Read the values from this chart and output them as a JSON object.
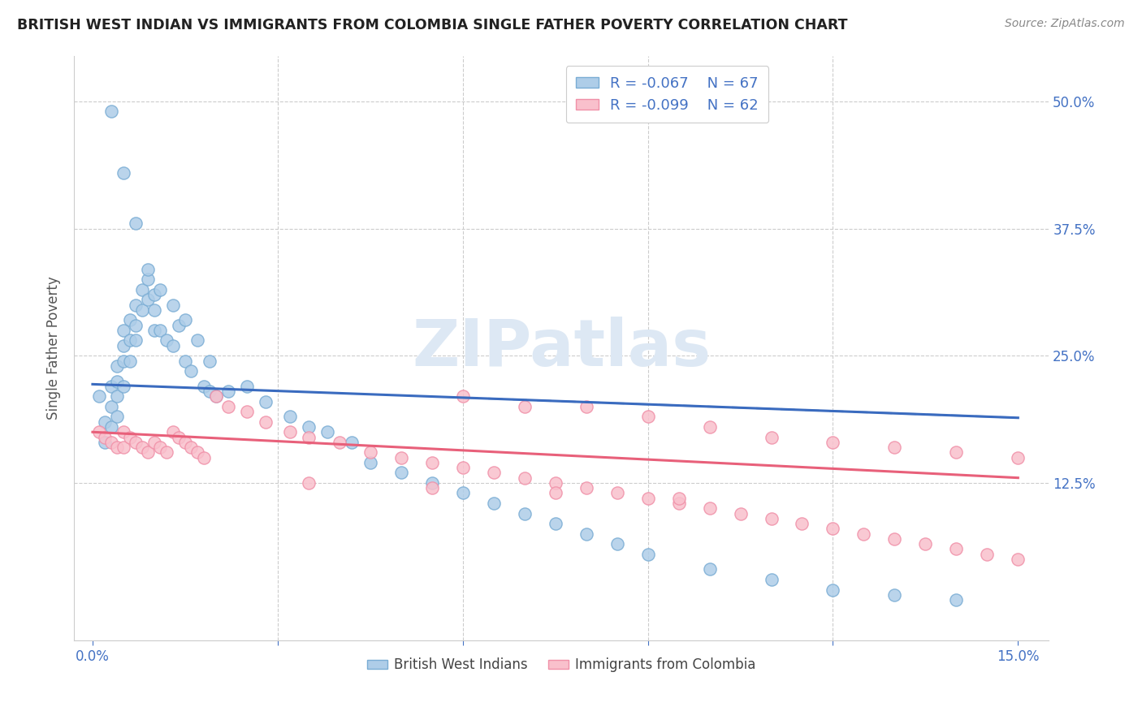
{
  "title": "BRITISH WEST INDIAN VS IMMIGRANTS FROM COLOMBIA SINGLE FATHER POVERTY CORRELATION CHART",
  "source": "Source: ZipAtlas.com",
  "ylabel": "Single Father Poverty",
  "ytick_labels": [
    "12.5%",
    "25.0%",
    "37.5%",
    "50.0%"
  ],
  "ytick_values": [
    0.125,
    0.25,
    0.375,
    0.5
  ],
  "xlim": [
    0.0,
    0.15
  ],
  "ylim": [
    -0.02,
    0.54
  ],
  "legend_r1": "R = -0.067",
  "legend_n1": "N = 67",
  "legend_r2": "R = -0.099",
  "legend_n2": "N = 62",
  "color_blue_face": "#aecde8",
  "color_blue_edge": "#7aadd4",
  "color_pink_face": "#f9c0cc",
  "color_pink_edge": "#f090a8",
  "trendline_blue": "#3a6bbf",
  "trendline_pink": "#e8607a",
  "trendline_dash_color": "#a0b8d8",
  "watermark_text": "ZIPatlas",
  "blue_intercept": 0.222,
  "blue_slope": -0.22,
  "pink_intercept": 0.175,
  "pink_slope": -0.3,
  "dash_intercept": 0.222,
  "dash_slope": -0.22,
  "blue_x": [
    0.001,
    0.002,
    0.002,
    0.003,
    0.003,
    0.003,
    0.004,
    0.004,
    0.004,
    0.004,
    0.005,
    0.005,
    0.005,
    0.005,
    0.006,
    0.006,
    0.006,
    0.007,
    0.007,
    0.007,
    0.008,
    0.008,
    0.009,
    0.009,
    0.01,
    0.01,
    0.01,
    0.011,
    0.012,
    0.013,
    0.014,
    0.015,
    0.016,
    0.018,
    0.019,
    0.02,
    0.022,
    0.025,
    0.028,
    0.032,
    0.035,
    0.038,
    0.042,
    0.045,
    0.05,
    0.055,
    0.06,
    0.065,
    0.07,
    0.075,
    0.08,
    0.085,
    0.09,
    0.1,
    0.11,
    0.12,
    0.13,
    0.14,
    0.003,
    0.005,
    0.007,
    0.009,
    0.011,
    0.013,
    0.015,
    0.017,
    0.019
  ],
  "blue_y": [
    0.21,
    0.185,
    0.165,
    0.22,
    0.2,
    0.18,
    0.24,
    0.225,
    0.21,
    0.19,
    0.275,
    0.26,
    0.245,
    0.22,
    0.285,
    0.265,
    0.245,
    0.3,
    0.28,
    0.265,
    0.315,
    0.295,
    0.325,
    0.305,
    0.31,
    0.295,
    0.275,
    0.275,
    0.265,
    0.26,
    0.28,
    0.245,
    0.235,
    0.22,
    0.215,
    0.21,
    0.215,
    0.22,
    0.205,
    0.19,
    0.18,
    0.175,
    0.165,
    0.145,
    0.135,
    0.125,
    0.115,
    0.105,
    0.095,
    0.085,
    0.075,
    0.065,
    0.055,
    0.04,
    0.03,
    0.02,
    0.015,
    0.01,
    0.49,
    0.43,
    0.38,
    0.335,
    0.315,
    0.3,
    0.285,
    0.265,
    0.245
  ],
  "pink_x": [
    0.001,
    0.002,
    0.003,
    0.004,
    0.005,
    0.005,
    0.006,
    0.007,
    0.008,
    0.009,
    0.01,
    0.011,
    0.012,
    0.013,
    0.014,
    0.015,
    0.016,
    0.017,
    0.018,
    0.02,
    0.022,
    0.025,
    0.028,
    0.032,
    0.035,
    0.04,
    0.045,
    0.05,
    0.055,
    0.06,
    0.065,
    0.07,
    0.075,
    0.08,
    0.085,
    0.09,
    0.095,
    0.1,
    0.105,
    0.11,
    0.115,
    0.12,
    0.125,
    0.13,
    0.135,
    0.14,
    0.145,
    0.15,
    0.06,
    0.07,
    0.08,
    0.09,
    0.1,
    0.11,
    0.12,
    0.13,
    0.14,
    0.15,
    0.035,
    0.055,
    0.075,
    0.095
  ],
  "pink_y": [
    0.175,
    0.17,
    0.165,
    0.16,
    0.175,
    0.16,
    0.17,
    0.165,
    0.16,
    0.155,
    0.165,
    0.16,
    0.155,
    0.175,
    0.17,
    0.165,
    0.16,
    0.155,
    0.15,
    0.21,
    0.2,
    0.195,
    0.185,
    0.175,
    0.17,
    0.165,
    0.155,
    0.15,
    0.145,
    0.14,
    0.135,
    0.13,
    0.125,
    0.12,
    0.115,
    0.11,
    0.105,
    0.1,
    0.095,
    0.09,
    0.085,
    0.08,
    0.075,
    0.07,
    0.065,
    0.06,
    0.055,
    0.05,
    0.21,
    0.2,
    0.2,
    0.19,
    0.18,
    0.17,
    0.165,
    0.16,
    0.155,
    0.15,
    0.125,
    0.12,
    0.115,
    0.11
  ]
}
